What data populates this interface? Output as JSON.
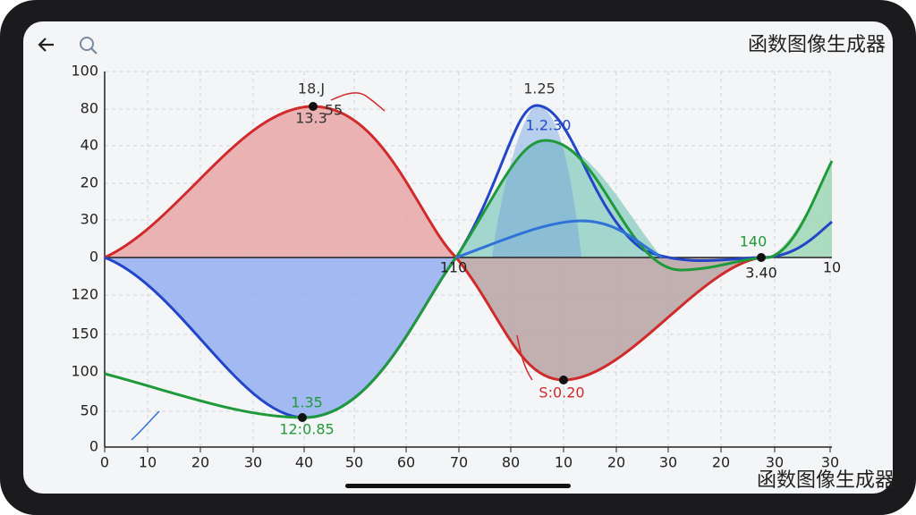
{
  "header": {
    "title": "函数图像生成器"
  },
  "footer": {
    "title": "函数图像生成器"
  },
  "y_axis_labels": [
    "100",
    "80",
    "40",
    "20",
    "30",
    "0",
    "120",
    "150",
    "100",
    "50",
    "0"
  ],
  "x_axis_labels": [
    "0",
    "10",
    "20",
    "30",
    "40",
    "50",
    "60",
    "70",
    "80",
    "10",
    "20",
    "30",
    "20",
    "30",
    "30"
  ],
  "zero_line_labels": [
    "110",
    "3.40",
    "10"
  ],
  "annotations": [
    "18.J",
    "13.3",
    "55",
    "1.25",
    "1.2.30",
    "140",
    "S:0.20",
    "1.35",
    "12:0.85"
  ]
}
